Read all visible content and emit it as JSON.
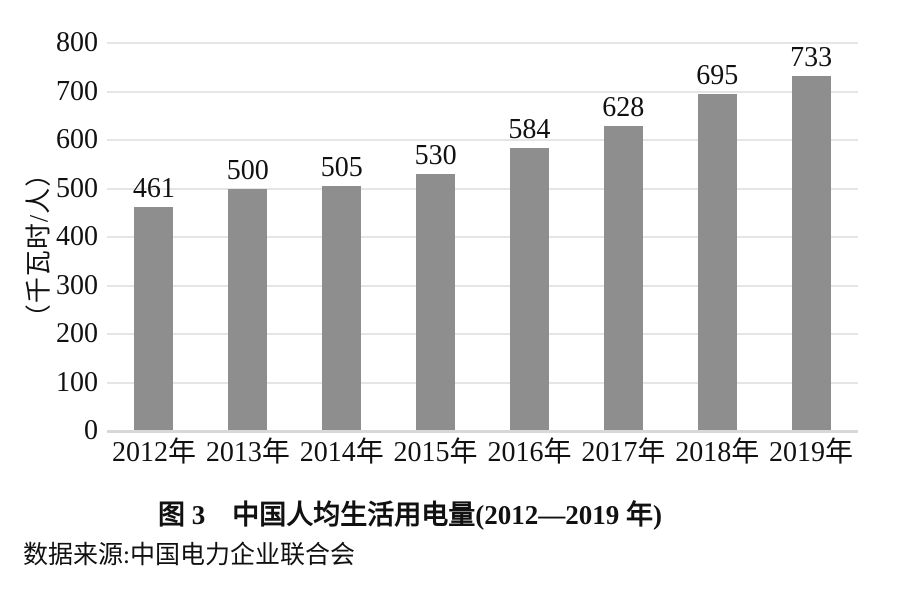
{
  "chart_data": {
    "type": "bar",
    "title": "图 3　中国人均生活用电量(2012—2019 年)",
    "categories": [
      "2012年",
      "2013年",
      "2014年",
      "2015年",
      "2016年",
      "2017年",
      "2018年",
      "2019年"
    ],
    "values": [
      461,
      500,
      505,
      530,
      584,
      628,
      695,
      733
    ],
    "xlabel": "",
    "ylabel": "（千瓦时/人）",
    "ylim": [
      0,
      800
    ],
    "yticks": [
      0,
      100,
      200,
      300,
      400,
      500,
      600,
      700,
      800
    ],
    "grid": "horizontal",
    "legend_position": "none",
    "bar_color": "#8e8e8e",
    "gridline_color": "#e5e5e5",
    "axis_line_color": "#d8d8d8",
    "text_color": "#111111"
  },
  "source": {
    "text": "数据来源:中国电力企业联合会"
  }
}
